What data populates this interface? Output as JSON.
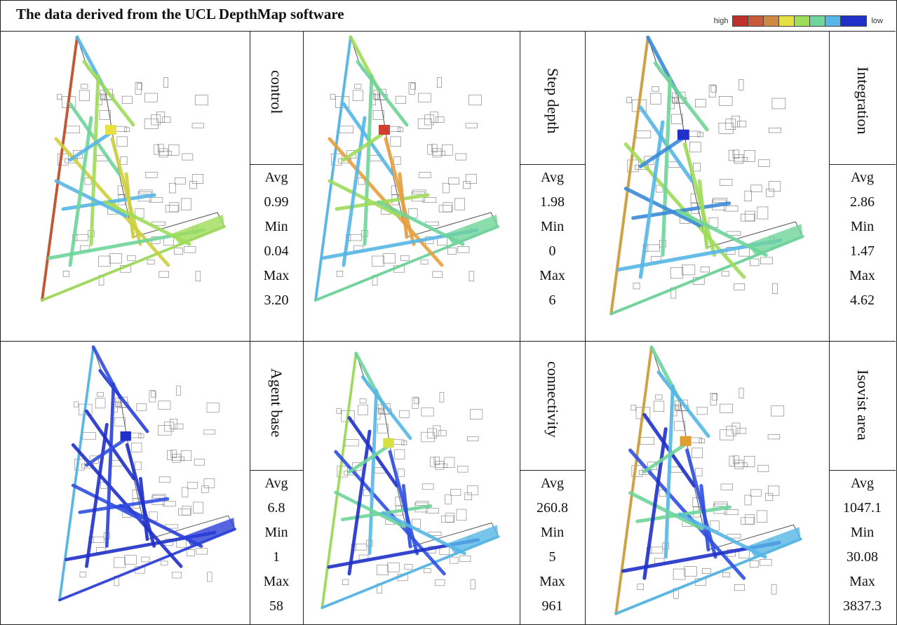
{
  "title": "The data derived from the UCL DepthMap software",
  "legend": {
    "high_label": "high",
    "low_label": "low",
    "colors": [
      "#c0302a",
      "#c85a3a",
      "#cf8a40",
      "#e6e040",
      "#9fdc5a",
      "#6fd59a",
      "#56b6e6",
      "#2030c8"
    ]
  },
  "panels": [
    {
      "label": "control",
      "stats": [
        "Avg",
        "0.99",
        "Min",
        "0.04",
        "Max",
        "3.20"
      ]
    },
    {
      "label": "Step depth",
      "stats": [
        "Avg",
        "1.98",
        "Min",
        "0",
        "Max",
        "6"
      ]
    },
    {
      "label": "Integration",
      "stats": [
        "Avg",
        "2.86",
        "Min",
        "1.47",
        "Max",
        "4.62"
      ]
    },
    {
      "label": "Agent base",
      "stats": [
        "Avg",
        "6.8",
        "Min",
        "1",
        "Max",
        "58"
      ]
    },
    {
      "label": "connectivity",
      "stats": [
        "Avg",
        "260.8",
        "Min",
        "5",
        "Max",
        "961"
      ]
    },
    {
      "label": "Isovist area",
      "stats": [
        "Avg",
        "1047.1",
        "Min",
        "30.08",
        "Max",
        "3837.3"
      ]
    }
  ]
}
